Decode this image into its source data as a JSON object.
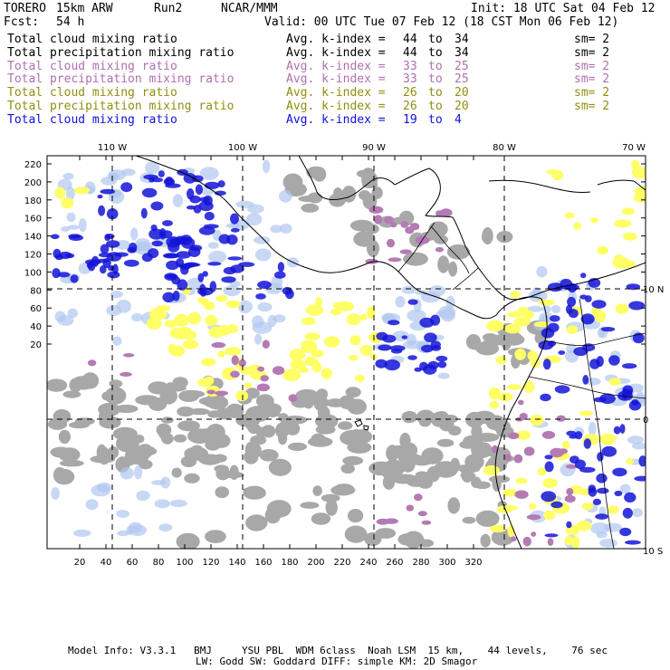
{
  "header": {
    "model": "TORERO",
    "resolution": "15km ARW",
    "run": "Run2",
    "org": "NCAR/MMM",
    "init": "Init: 18 UTC Sat 04 Feb 12",
    "fcst_label": "Fcst:",
    "fcst_value": "54 h",
    "valid": "Valid: 00 UTC Tue 07 Feb 12 (18 CST Mon 06 Feb 12)"
  },
  "legend_rows": [
    {
      "field": "Total cloud mixing ratio",
      "kindex": "Avg. k-index =",
      "from": "44",
      "to_word": "to",
      "to": "34",
      "sm": "sm= 2",
      "color": "#000000"
    },
    {
      "field": "Total precipitation mixing ratio",
      "kindex": "Avg. k-index =",
      "from": "44",
      "to_word": "to",
      "to": "34",
      "sm": "sm= 2",
      "color": "#000000"
    },
    {
      "field": "Total cloud mixing ratio",
      "kindex": "Avg. k-index =",
      "from": "33",
      "to_word": "to",
      "to": "25",
      "sm": "sm= 2",
      "color": "#b070b0"
    },
    {
      "field": "Total precipitation mixing ratio",
      "kindex": "Avg. k-index =",
      "from": "33",
      "to_word": "to",
      "to": "25",
      "sm": "sm= 2",
      "color": "#b070b0"
    },
    {
      "field": "Total cloud mixing ratio",
      "kindex": "Avg. k-index =",
      "from": "26",
      "to_word": "to",
      "to": "20",
      "sm": "sm= 2",
      "color": "#8f8f10"
    },
    {
      "field": "Total precipitation mixing ratio",
      "kindex": "Avg. k-index =",
      "from": "26",
      "to_word": "to",
      "to": "20",
      "sm": "sm= 2",
      "color": "#8f8f10"
    },
    {
      "field": "Total cloud mixing ratio",
      "kindex": "Avg. k-index =",
      "from": "19",
      "to_word": "to",
      "to": "4",
      "sm": "",
      "color": "#1010e0"
    }
  ],
  "map": {
    "top_lon_labels": [
      "110 W",
      "100 W",
      "90 W",
      "80 W",
      "70 W"
    ],
    "right_lat_labels": [
      "10 N",
      "0",
      "10 S"
    ],
    "left_y_ticks": [
      "220",
      "200",
      "180",
      "160",
      "140",
      "120",
      "100",
      "80",
      "60",
      "40",
      "20"
    ],
    "bottom_x_ticks": [
      "20",
      "40",
      "60",
      "80",
      "100",
      "120",
      "140",
      "160",
      "180",
      "200",
      "220",
      "240",
      "260",
      "280",
      "300",
      "320"
    ],
    "colors": {
      "gray": "#a8a8a8",
      "purple": "#b47ab4",
      "yellow": "#ffff66",
      "blue": "#1414d8",
      "light_blue": "#b0c8f0"
    }
  },
  "footer": {
    "line1": "Model Info: V3.3.1   BMJ     YSU PBL  WDM 6class  Noah LSM  15 km,    44 levels,    76 sec",
    "line2": "LW: Godd SW: Goddard DIFF: simple KM: 2D Smagor"
  }
}
